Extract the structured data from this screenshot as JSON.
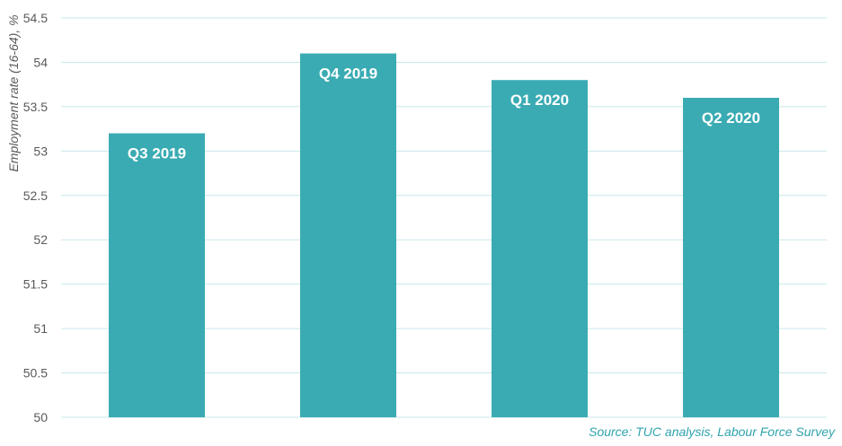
{
  "chart_data": {
    "type": "bar",
    "categories": [
      "Q3 2019",
      "Q4 2019",
      "Q1 2020",
      "Q2 2020"
    ],
    "values": [
      53.2,
      54.1,
      53.8,
      53.6
    ],
    "title": "",
    "xlabel": "",
    "ylabel": "Employment rate (16-64), %",
    "ylim": [
      50,
      54.5
    ],
    "yticks": [
      "50",
      "50.5",
      "51",
      "51.5",
      "52",
      "52.5",
      "53",
      "53.5",
      "54",
      "54.5"
    ],
    "grid": true,
    "bar_color": "#3aabb3",
    "grid_color": "#c9e7ea"
  },
  "source": "Source: TUC analysis, Labour Force Survey"
}
